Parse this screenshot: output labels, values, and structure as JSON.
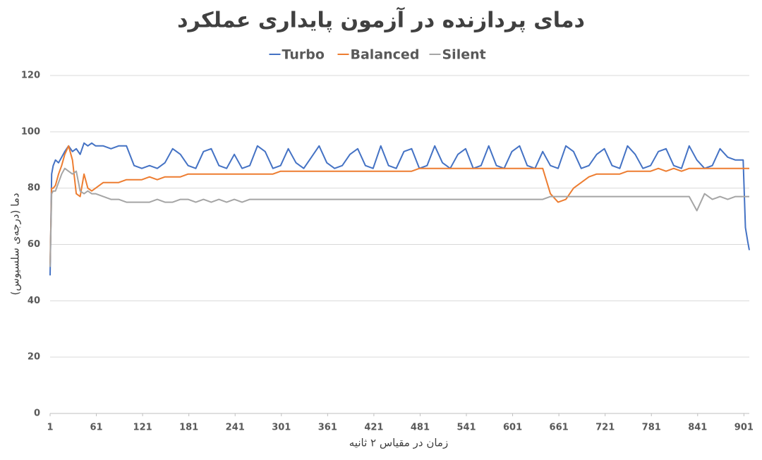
{
  "chart_data": {
    "type": "line",
    "title": "دمای پردازنده در آزمون پایداری عملکرد",
    "x_label": "زمان در مقیاس ۲ ثانیه",
    "y_label": "دما (درجه‌ی سلسیوس)",
    "x": [
      1,
      3,
      5,
      8,
      12,
      16,
      20,
      25,
      30,
      35,
      40,
      45,
      50,
      55,
      60,
      70,
      80,
      90,
      100,
      110,
      120,
      130,
      140,
      150,
      160,
      170,
      180,
      190,
      200,
      210,
      220,
      230,
      240,
      250,
      260,
      270,
      280,
      290,
      300,
      310,
      320,
      330,
      340,
      350,
      360,
      370,
      380,
      390,
      400,
      410,
      420,
      430,
      440,
      450,
      460,
      470,
      480,
      490,
      500,
      510,
      520,
      530,
      540,
      550,
      560,
      570,
      580,
      590,
      600,
      610,
      620,
      630,
      640,
      650,
      660,
      670,
      680,
      690,
      700,
      710,
      720,
      730,
      740,
      750,
      760,
      770,
      780,
      790,
      800,
      810,
      820,
      830,
      840,
      850,
      860,
      870,
      880,
      890,
      900,
      903,
      906,
      908
    ],
    "series": [
      {
        "name": "Turbo",
        "color": "#4472c4",
        "values": [
          49,
          85,
          88,
          90,
          89,
          91,
          93,
          95,
          93,
          94,
          92,
          96,
          95,
          96,
          95,
          95,
          94,
          95,
          95,
          88,
          87,
          88,
          87,
          89,
          94,
          92,
          88,
          87,
          93,
          94,
          88,
          87,
          92,
          87,
          88,
          95,
          93,
          87,
          88,
          94,
          89,
          87,
          91,
          95,
          89,
          87,
          88,
          92,
          94,
          88,
          87,
          95,
          88,
          87,
          93,
          94,
          87,
          88,
          95,
          89,
          87,
          92,
          94,
          87,
          88,
          95,
          88,
          87,
          93,
          95,
          88,
          87,
          93,
          88,
          87,
          95,
          93,
          87,
          88,
          92,
          94,
          88,
          87,
          95,
          92,
          87,
          88,
          93,
          94,
          88,
          87,
          95,
          90,
          87,
          88,
          94,
          91,
          90,
          90,
          66,
          61,
          58
        ]
      },
      {
        "name": "Balanced",
        "color": "#ed7d31",
        "values": [
          53,
          80,
          80,
          81,
          85,
          88,
          92,
          95,
          90,
          78,
          77,
          85,
          80,
          79,
          80,
          82,
          82,
          82,
          83,
          83,
          83,
          84,
          83,
          84,
          84,
          84,
          85,
          85,
          85,
          85,
          85,
          85,
          85,
          85,
          85,
          85,
          85,
          85,
          86,
          86,
          86,
          86,
          86,
          86,
          86,
          86,
          86,
          86,
          86,
          86,
          86,
          86,
          86,
          86,
          86,
          86,
          87,
          87,
          87,
          87,
          87,
          87,
          87,
          87,
          87,
          87,
          87,
          87,
          87,
          87,
          87,
          87,
          87,
          78,
          75,
          76,
          80,
          82,
          84,
          85,
          85,
          85,
          85,
          86,
          86,
          86,
          86,
          87,
          86,
          87,
          86,
          87,
          87,
          87,
          87,
          87,
          87,
          87,
          87,
          87,
          87,
          87
        ]
      },
      {
        "name": "Silent",
        "color": "#a5a5a5",
        "values": [
          52,
          78,
          79,
          79,
          82,
          85,
          87,
          86,
          85,
          86,
          79,
          78,
          79,
          78,
          78,
          77,
          76,
          76,
          75,
          75,
          75,
          75,
          76,
          75,
          75,
          76,
          76,
          75,
          76,
          75,
          76,
          75,
          76,
          75,
          76,
          76,
          76,
          76,
          76,
          76,
          76,
          76,
          76,
          76,
          76,
          76,
          76,
          76,
          76,
          76,
          76,
          76,
          76,
          76,
          76,
          76,
          76,
          76,
          76,
          76,
          76,
          76,
          76,
          76,
          76,
          76,
          76,
          76,
          76,
          76,
          76,
          76,
          76,
          77,
          77,
          77,
          77,
          77,
          77,
          77,
          77,
          77,
          77,
          77,
          77,
          77,
          77,
          77,
          77,
          77,
          77,
          77,
          72,
          78,
          76,
          77,
          76,
          77,
          77,
          77,
          77,
          77
        ]
      }
    ],
    "xlim": [
      1,
      908
    ],
    "xticks": [
      1,
      61,
      121,
      181,
      241,
      301,
      361,
      421,
      481,
      541,
      601,
      661,
      721,
      781,
      841,
      901
    ],
    "ylim": [
      0,
      120
    ],
    "yticks": [
      0,
      20,
      40,
      60,
      80,
      100,
      120
    ],
    "grid": true,
    "legend": "top"
  }
}
